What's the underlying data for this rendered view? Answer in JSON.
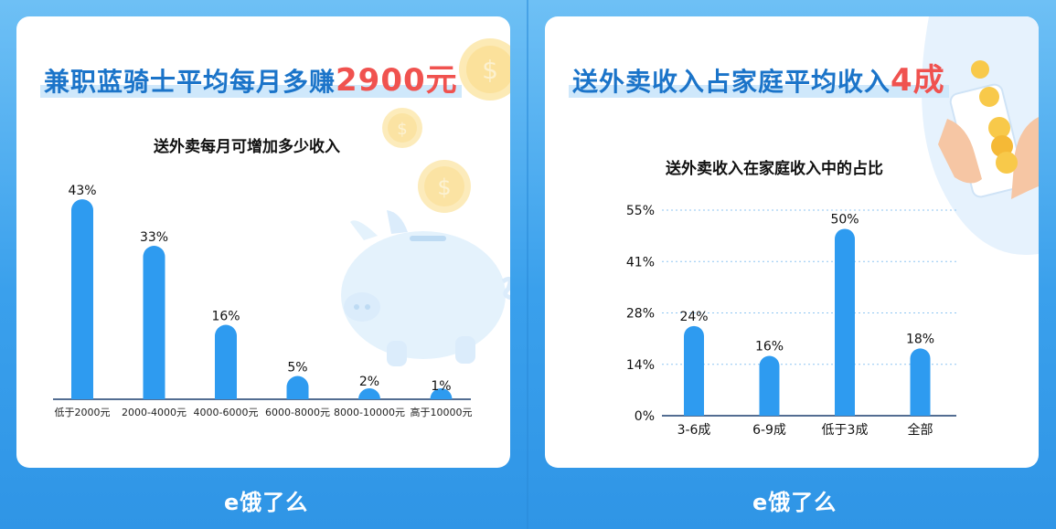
{
  "left": {
    "headline_prefix": "兼职蓝骑士平均每月多赚",
    "headline_accent": "2900元",
    "chart_title": "送外卖每月可增加多少收入"
  },
  "right": {
    "headline_prefix": "送外卖收入占家庭平均收入",
    "headline_accent": "4成",
    "chart_title": "送外卖收入在家庭收入中的占比"
  },
  "logo": "e饿了么",
  "chart_data": [
    {
      "type": "bar",
      "title": "送外卖每月可增加多少收入",
      "categories": [
        "低于2000元",
        "2000-4000元",
        "4000-6000元",
        "6000-8000元",
        "8000-10000元",
        "高于10000元"
      ],
      "values": [
        43,
        33,
        16,
        5,
        2,
        1
      ],
      "value_labels": [
        "43%",
        "33%",
        "16%",
        "5%",
        "2%",
        "1%"
      ],
      "unit": "%",
      "color": "#2e9bf0",
      "grid": false
    },
    {
      "type": "bar",
      "title": "送外卖收入在家庭收入中的占比",
      "categories": [
        "3-6成",
        "6-9成",
        "低于3成",
        "全部"
      ],
      "values": [
        24,
        16,
        50,
        18
      ],
      "value_labels": [
        "24%",
        "16%",
        "50%",
        "18%"
      ],
      "ylim": [
        0,
        55
      ],
      "yticks": [
        "0%",
        "14%",
        "28%",
        "41%",
        "55%"
      ],
      "unit": "%",
      "color": "#2e9bf0",
      "grid": true
    }
  ],
  "colors": {
    "bar": "#2e9bf0",
    "headline": "#1b74c9",
    "accent": "#f0524f",
    "background": "#3aa0ec"
  }
}
